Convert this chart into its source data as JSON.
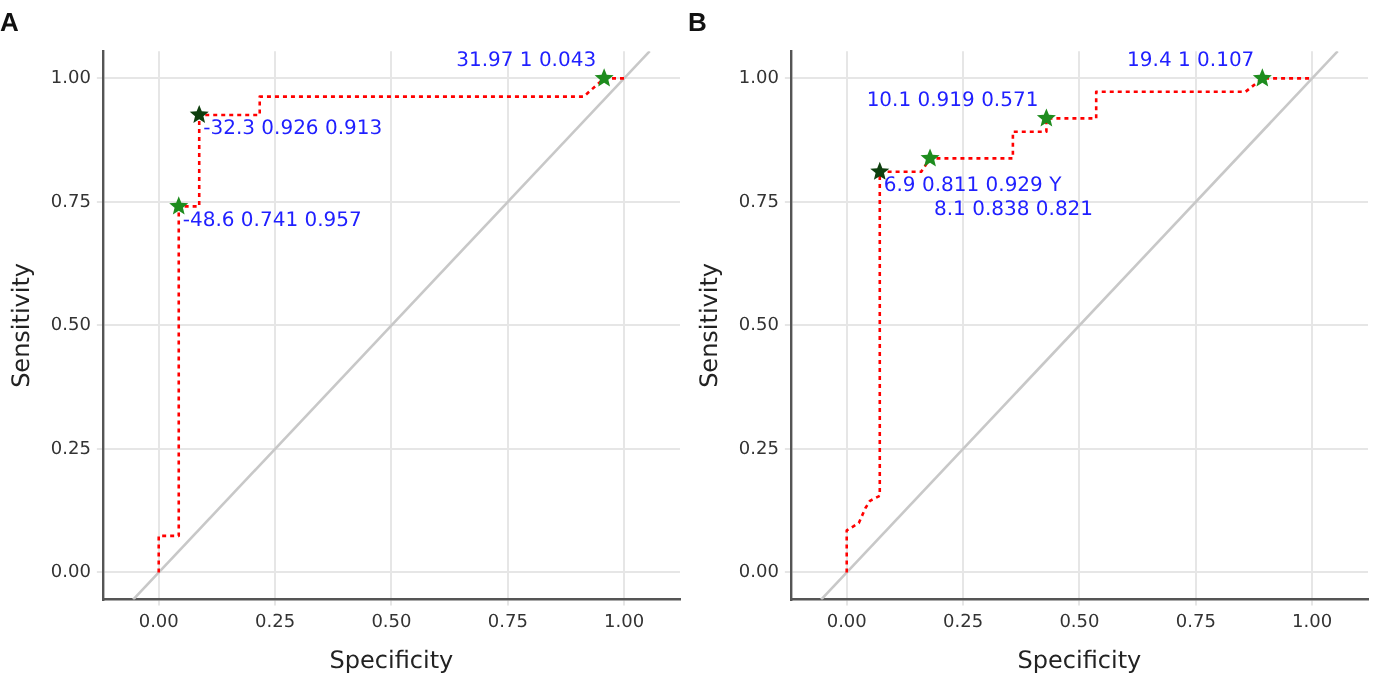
{
  "chart_data": [
    {
      "type": "line",
      "title": "A",
      "xlabel": "Specificity",
      "ylabel": "Sensitivity",
      "xlim": [
        -0.12,
        1.12
      ],
      "ylim": [
        -0.055,
        1.055
      ],
      "xticks": [
        {
          "value": 0,
          "label": "0.00"
        },
        {
          "value": 0.25,
          "label": "0.25"
        },
        {
          "value": 0.5,
          "label": "0.50"
        },
        {
          "value": 0.75,
          "label": "0.75"
        },
        {
          "value": 1,
          "label": "1.00"
        }
      ],
      "yticks": [
        {
          "value": 0,
          "label": "0.00"
        },
        {
          "value": 0.25,
          "label": "0.25"
        },
        {
          "value": 0.5,
          "label": "0.50"
        },
        {
          "value": 0.75,
          "label": "0.75"
        },
        {
          "value": 1,
          "label": "1.00"
        }
      ],
      "grid": true,
      "series": [
        {
          "type": "line",
          "color": "#ff0000",
          "line_style": "dotted",
          "x": [
            0,
            0,
            0.043,
            0.043,
            0.087,
            0.087,
            0.217,
            0.217,
            0.913,
            0.957,
            1
          ],
          "values": [
            0,
            0.074,
            0.074,
            0.741,
            0.741,
            0.926,
            0.926,
            0.963,
            0.963,
            1,
            1
          ]
        },
        {
          "type": "line",
          "color": "#c8c8c8",
          "line_style": "solid",
          "x": [
            -0.055,
            1.055
          ],
          "values": [
            -0.055,
            1.055
          ]
        },
        {
          "type": "scatter",
          "marker": "star",
          "colors": [
            "#1e8c1e",
            "#0f3f0f",
            "#1e8c1e"
          ],
          "x": [
            0.043,
            0.087,
            0.957
          ],
          "values": [
            0.741,
            0.926,
            1
          ]
        }
      ],
      "annotations": [
        {
          "text": "-48.6 0.741 0.957",
          "x": 0.043,
          "y": 0.741
        },
        {
          "text": "-32.3 0.926 0.913",
          "x": 0.087,
          "y": 0.926
        },
        {
          "text": "31.97 1 0.043",
          "x": 0.957,
          "y": 1
        }
      ]
    },
    {
      "type": "line",
      "title": "B",
      "xlabel": "Specificity",
      "ylabel": "Sensitivity",
      "xlim": [
        -0.12,
        1.12
      ],
      "ylim": [
        -0.055,
        1.055
      ],
      "xticks": [
        {
          "value": 0,
          "label": "0.00"
        },
        {
          "value": 0.25,
          "label": "0.25"
        },
        {
          "value": 0.5,
          "label": "0.50"
        },
        {
          "value": 0.75,
          "label": "0.75"
        },
        {
          "value": 1,
          "label": "1.00"
        }
      ],
      "yticks": [
        {
          "value": 0,
          "label": "0.00"
        },
        {
          "value": 0.25,
          "label": "0.25"
        },
        {
          "value": 0.5,
          "label": "0.50"
        },
        {
          "value": 0.75,
          "label": "0.75"
        },
        {
          "value": 1,
          "label": "1.00"
        }
      ],
      "grid": true,
      "series": [
        {
          "type": "line",
          "color": "#ff0000",
          "line_style": "dotted",
          "x": [
            0,
            0,
            0.026,
            0.04,
            0.05,
            0.071,
            0.071,
            0.16,
            0.179,
            0.357,
            0.357,
            0.429,
            0.429,
            0.536,
            0.536,
            0.857,
            0.893,
            1
          ],
          "values": [
            0,
            0.085,
            0.1,
            0.13,
            0.145,
            0.155,
            0.811,
            0.811,
            0.838,
            0.838,
            0.892,
            0.892,
            0.919,
            0.919,
            0.973,
            0.973,
            1,
            1
          ]
        },
        {
          "type": "line",
          "color": "#c8c8c8",
          "line_style": "solid",
          "x": [
            -0.055,
            1.055
          ],
          "values": [
            -0.055,
            1.055
          ]
        },
        {
          "type": "scatter",
          "marker": "star",
          "colors": [
            "#0f3f0f",
            "#1e8c1e",
            "#1e8c1e",
            "#1e8c1e"
          ],
          "x": [
            0.071,
            0.179,
            0.429,
            0.893
          ],
          "values": [
            0.811,
            0.838,
            0.919,
            1
          ]
        }
      ],
      "annotations": [
        {
          "text": "6.9 0.811 0.929 Y",
          "x": 0.071,
          "y": 0.811
        },
        {
          "text": "8.1 0.838 0.821",
          "x": 0.179,
          "y": 0.838
        },
        {
          "text": "10.1 0.919 0.571",
          "x": 0.429,
          "y": 0.919
        },
        {
          "text": "19.4 1 0.107",
          "x": 0.893,
          "y": 1
        }
      ]
    }
  ]
}
